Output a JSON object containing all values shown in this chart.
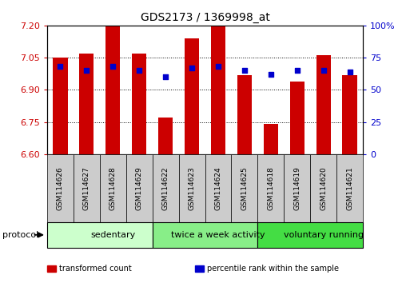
{
  "title": "GDS2173 / 1369998_at",
  "samples": [
    "GSM114626",
    "GSM114627",
    "GSM114628",
    "GSM114629",
    "GSM114622",
    "GSM114623",
    "GSM114624",
    "GSM114625",
    "GSM114618",
    "GSM114619",
    "GSM114620",
    "GSM114621"
  ],
  "bar_values": [
    7.05,
    7.07,
    7.2,
    7.07,
    6.77,
    7.14,
    7.2,
    6.97,
    6.74,
    6.94,
    7.06,
    6.97
  ],
  "dot_values": [
    68,
    65,
    68,
    65,
    60,
    67,
    68,
    65,
    62,
    65,
    65,
    64
  ],
  "ylim_left": [
    6.6,
    7.2
  ],
  "ylim_right": [
    0,
    100
  ],
  "yticks_left": [
    6.6,
    6.75,
    6.9,
    7.05,
    7.2
  ],
  "yticks_right": [
    0,
    25,
    50,
    75,
    100
  ],
  "bar_color": "#cc0000",
  "dot_color": "#0000cc",
  "bar_bottom": 6.6,
  "groups": [
    {
      "label": "sedentary",
      "start": 0,
      "end": 4,
      "color": "#ccffcc"
    },
    {
      "label": "twice a week activity",
      "start": 4,
      "end": 8,
      "color": "#88ee88"
    },
    {
      "label": "voluntary running",
      "start": 8,
      "end": 12,
      "color": "#44dd44"
    }
  ],
  "protocol_label": "protocol",
  "legend": [
    {
      "color": "#cc0000",
      "label": "transformed count"
    },
    {
      "color": "#0000cc",
      "label": "percentile rank within the sample"
    }
  ],
  "tick_color_left": "#cc0000",
  "tick_color_right": "#0000cc",
  "bar_width": 0.55,
  "dot_size": 25,
  "label_box_color": "#cccccc",
  "fig_bg": "#ffffff"
}
